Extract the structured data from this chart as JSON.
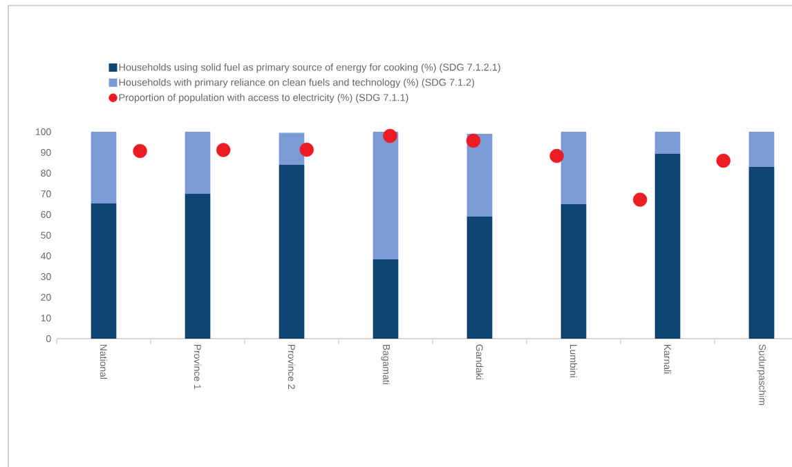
{
  "chart_data": {
    "type": "bar",
    "stacked": true,
    "categories": [
      "National",
      "Province 1",
      "Province 2",
      "Bagamati",
      "Gandaki",
      "Lumbini",
      "Karnali",
      "Sudurpaschim"
    ],
    "series": [
      {
        "name": "Households using solid fuel as primary source of energy for cooking (%)  (SDG 7.1.2.1)",
        "color": "#0e4470",
        "values": [
          65.5,
          70,
          84,
          38.5,
          59,
          65,
          89.5,
          83
        ]
      },
      {
        "name": "Households  with primary reliance on clean fuels and technology (%) (SDG 7.1.2)",
        "color": "#7b9bd6",
        "values": [
          34.5,
          30,
          15.5,
          61.5,
          40,
          35,
          10.5,
          17
        ]
      },
      {
        "name": "Proportion of population with access to electricity (%)  (SDG 7.1.1)",
        "type": "scatter",
        "color": "#ec1c24",
        "marker": "circle",
        "x": [
          "National",
          "Province 1",
          "Province 2",
          "Bagamati",
          "Gandaki",
          "Lumbini",
          "Karnali",
          "Sudurpaschim"
        ],
        "values": [
          90.7,
          91.2,
          91.3,
          98,
          95.7,
          88.3,
          67.2,
          86
        ]
      }
    ],
    "ylim": [
      0,
      100
    ],
    "yticks": [
      0,
      10,
      20,
      30,
      40,
      50,
      60,
      70,
      80,
      90,
      100
    ],
    "grid": false,
    "legend": "top"
  }
}
